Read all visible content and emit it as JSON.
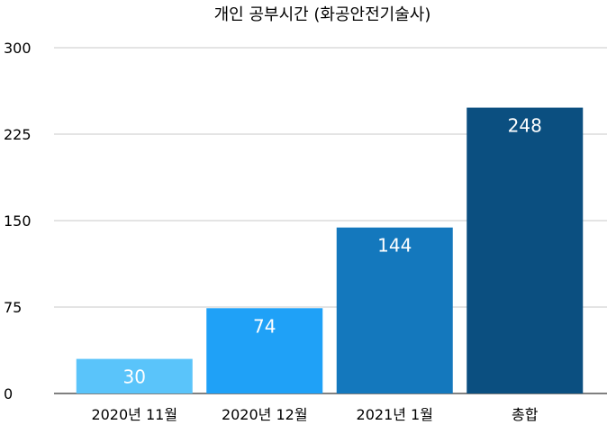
{
  "chart_data": {
    "type": "bar",
    "title": "개인 공부시간 (화공안전기술사)",
    "xlabel": "",
    "ylabel": "",
    "categories": [
      "2020년 11월",
      "2020년 12월",
      "2021년 1월",
      "총합"
    ],
    "values": [
      30,
      74,
      144,
      248
    ],
    "value_labels": [
      "30",
      "74",
      "144",
      "248"
    ],
    "bar_colors": [
      "#5ac4fa",
      "#1fa1f7",
      "#1478bd",
      "#0b4f80"
    ],
    "ylim": [
      0,
      300
    ],
    "yticks": [
      0,
      75,
      150,
      225,
      300
    ],
    "ytick_labels": [
      "0",
      "75",
      "150",
      "225",
      "300"
    ],
    "grid": true,
    "legend": "none"
  }
}
